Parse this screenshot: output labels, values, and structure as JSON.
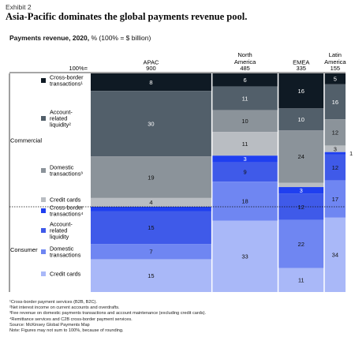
{
  "exhibit": "Exhibit 2",
  "title": "Asia-Pacific dominates the global payments revenue pool.",
  "subtitle": {
    "main": "Payments revenue, 2020,",
    "unit": " % (100% = $ billion)"
  },
  "total_label": "100%=",
  "chart_data": {
    "type": "bar",
    "subtype": "mekko",
    "x_unit": "$ billion (100% =)",
    "y_unit": "% share of region",
    "categories": [
      "APAC",
      "North America",
      "EMEA",
      "Latin America"
    ],
    "category_display": [
      [
        "APAC"
      ],
      [
        "North",
        "America"
      ],
      [
        "EMEA"
      ],
      [
        "Latin",
        "America"
      ]
    ],
    "totals": [
      900,
      485,
      335,
      155
    ],
    "totals_display": [
      "900",
      "485",
      "335",
      "155"
    ],
    "series": [
      {
        "name": "Cross-border transactions¹",
        "group": "Commercial",
        "color": "#0f1a24",
        "text_color": "#ffffff",
        "values": [
          8,
          6,
          16,
          5
        ]
      },
      {
        "name": "Account-related liquidity²",
        "group": "Commercial",
        "color": "#525f6a",
        "text_color": "#ffffff",
        "values": [
          30,
          11,
          10,
          16
        ]
      },
      {
        "name": "Domestic transactions³",
        "group": "Commercial",
        "color": "#8b939a",
        "text_color": "#111111",
        "values": [
          19,
          10,
          24,
          12
        ]
      },
      {
        "name": "Credit cards",
        "group": "Commercial",
        "color": "#b9bdc2",
        "text_color": "#111111",
        "values": [
          4,
          11,
          2,
          3
        ]
      },
      {
        "name": "Cross-border transactions⁴",
        "group": "Consumer",
        "color": "#1f3ff0",
        "text_color": "#ffffff",
        "values": [
          2,
          3,
          3,
          1
        ]
      },
      {
        "name": "Account-related liquidity",
        "group": "Consumer",
        "color": "#3f5ae9",
        "text_color": "#111111",
        "values": [
          15,
          9,
          12,
          12
        ]
      },
      {
        "name": "Domestic transactions",
        "group": "Consumer",
        "color": "#6f86f2",
        "text_color": "#111111",
        "values": [
          7,
          18,
          22,
          17
        ]
      },
      {
        "name": "Credit cards",
        "group": "Consumer",
        "color": "#a9b8f8",
        "text_color": "#111111",
        "values": [
          15,
          33,
          11,
          34
        ]
      }
    ],
    "groups": [
      "Commercial",
      "Consumer"
    ],
    "ylim": [
      0,
      100
    ]
  },
  "legend_lines": [
    [
      "Cross-border",
      "transactions¹"
    ],
    [
      "Account-",
      "related",
      "liquidity²"
    ],
    [
      "Domestic",
      "transactions³"
    ],
    [
      "Credit cards"
    ],
    [
      "Cross-border",
      "transactions⁴"
    ],
    [
      "Account-",
      "related",
      "liquidity"
    ],
    [
      "Domestic",
      "transactions"
    ],
    [
      "Credit cards"
    ]
  ],
  "footnotes": [
    "¹Cross-border payment services (B2B, B2C).",
    "²Net interest income on current accounts and overdrafts.",
    "³Fee revenue on domestic payments transactions and account maintenance (excluding credit cards).",
    "⁴Remittance services and C2B cross-border payment services.",
    "Source: McKinsey Global Payments Map",
    "Note: Figures may not sum to 100%, because of rounding."
  ]
}
